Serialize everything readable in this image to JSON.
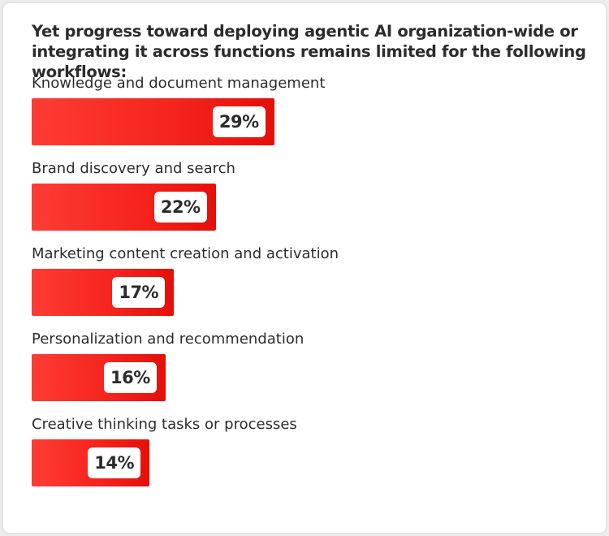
{
  "chart_data": {
    "type": "bar",
    "orientation": "horizontal",
    "title": "Yet progress toward deploying agentic AI organization-wide or integrating it across functions remains limited for the following workflows:",
    "categories": [
      "Knowledge and document management",
      "Brand discovery and search",
      "Marketing content creation and activation",
      "Personalization and recommendation",
      "Creative thinking tasks or processes"
    ],
    "values": [
      29,
      22,
      17,
      16,
      14
    ],
    "data_labels": [
      "29%",
      "22%",
      "17%",
      "16%",
      "14%"
    ],
    "unit": "%",
    "bar_color": "#f5231c",
    "label_box_color": "#ffffff",
    "text_color": "#2c2c2c"
  }
}
